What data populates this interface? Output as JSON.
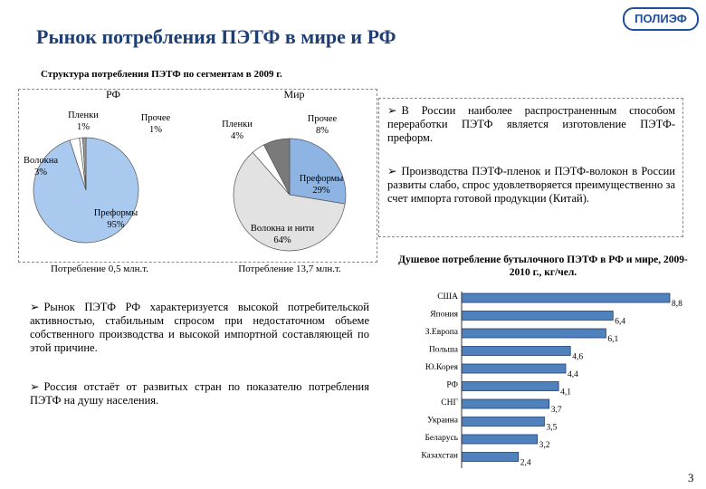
{
  "header": {
    "title": "Рынок потребления ПЭТФ в мире и РФ",
    "logo": "ПОЛИЭФ"
  },
  "segments": {
    "title": "Структура потребления ПЭТФ по сегментам в 2009 г.",
    "charts": [
      {
        "type": "pie",
        "title": "РФ",
        "categories": [
          "Преформы",
          "Волокна",
          "Пленки",
          "Прочее"
        ],
        "values": [
          95,
          3,
          1,
          1
        ],
        "value_labels": [
          "95%",
          "3%",
          "1%",
          "1%"
        ],
        "colors": [
          "#a9c9ee",
          "#ffffff",
          "#ffffff",
          "#9a9a9a"
        ],
        "note": "Потребление 0,5 млн.т."
      },
      {
        "type": "pie",
        "title": "Мир",
        "categories": [
          "Преформы",
          "Волокна и нити",
          "Пленки",
          "Прочее"
        ],
        "values": [
          29,
          64,
          4,
          8
        ],
        "value_labels": [
          "29%",
          "64%",
          "4%",
          "8%"
        ],
        "colors": [
          "#8db4e2",
          "#e2e2e2",
          "#ffffff",
          "#7a7a7a"
        ],
        "note": "Потребление 13,7 млн.т."
      }
    ]
  },
  "right_bullets": [
    "В России наиболее распространенным способом переработки ПЭТФ является изготовление ПЭТФ-преформ.",
    "Производства ПЭТФ-пленок и ПЭТФ-волокон в России развиты слабо, спрос удовлетворяется преимущественно за счет импорта готовой продукции (Китай)."
  ],
  "left_bullets": [
    "Рынок ПЭТФ РФ характеризуется высокой потребительской активностью, стабильным спросом при недостаточном объеме собственного производства и высокой импортной составляющей по этой причине.",
    "Россия отстаёт от развитых стран по показателю потребления ПЭТФ на душу населения."
  ],
  "bar_chart": {
    "type": "bar",
    "orientation": "horizontal",
    "title": "Душевое потребление бутылочного ПЭТФ в РФ и мире, 2009-2010 г., кг/чел.",
    "categories": [
      "США",
      "Япония",
      "З.Европа",
      "Польша",
      "Ю.Корея",
      "РФ",
      "СНГ",
      "Украина",
      "Беларусь",
      "Казахстан"
    ],
    "values": [
      8.8,
      6.4,
      6.1,
      4.6,
      4.4,
      4.1,
      3.7,
      3.5,
      3.2,
      2.4
    ],
    "value_labels": [
      "8,8",
      "6,4",
      "6,1",
      "4,6",
      "4,4",
      "4,1",
      "3,7",
      "3,5",
      "3,2",
      "2,4"
    ],
    "color": "#4f81bd"
  },
  "page_number": "3"
}
